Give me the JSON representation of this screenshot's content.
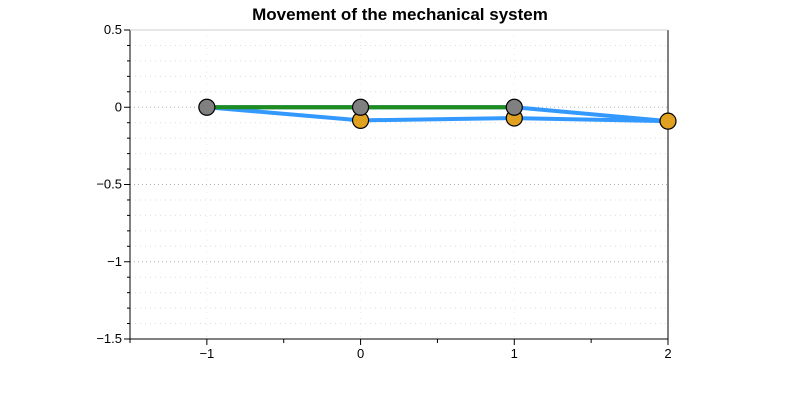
{
  "chart_data": {
    "type": "line",
    "title": "Movement of the mechanical system",
    "xlabel": "",
    "ylabel": "",
    "xlim": [
      -1.5,
      2
    ],
    "ylim": [
      -1.5,
      0.5
    ],
    "grid": true,
    "x_ticks": [
      -1,
      0,
      1,
      2
    ],
    "x_tick_labels": [
      "−1",
      "0",
      "1",
      "2"
    ],
    "y_ticks": [
      0.5,
      0,
      -0.5,
      -1,
      -1.5
    ],
    "y_tick_labels": [
      "0.5",
      "0",
      "−0.5",
      "−1",
      "−1.5"
    ],
    "series": [
      {
        "color": "#1f8c1f",
        "points": [
          [
            -1,
            0
          ],
          [
            0,
            0
          ],
          [
            1,
            0
          ]
        ]
      },
      {
        "color": "#3399ff",
        "points": [
          [
            -1,
            0
          ],
          [
            0,
            0
          ],
          [
            1,
            0
          ],
          [
            2,
            -0.09
          ],
          [
            1,
            -0.07
          ],
          [
            0,
            -0.085
          ],
          [
            -1,
            0
          ]
        ]
      }
    ],
    "nodes": [
      {
        "x": 0,
        "y": -0.085,
        "color": "#e0a020"
      },
      {
        "x": 1,
        "y": -0.07,
        "color": "#e0a020"
      },
      {
        "x": 2,
        "y": -0.09,
        "color": "#e0a020"
      },
      {
        "x": -1,
        "y": 0,
        "color": "#808080"
      },
      {
        "x": 0,
        "y": 0,
        "color": "#808080"
      },
      {
        "x": 1,
        "y": 0,
        "color": "#808080"
      }
    ]
  }
}
